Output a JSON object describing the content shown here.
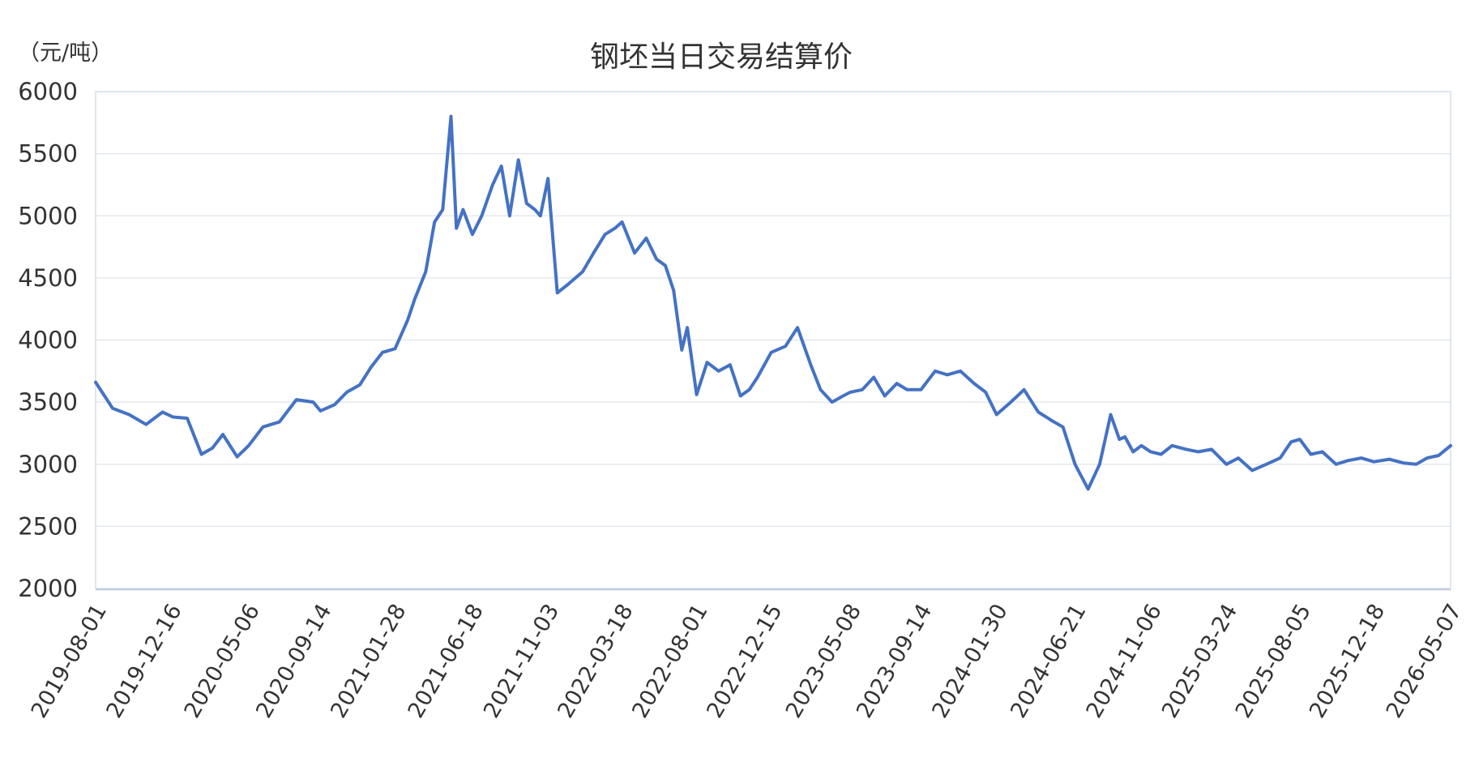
{
  "chart_data": {
    "type": "line",
    "title": "钢坯当日交易结算价",
    "ylabel": "（元/吨）",
    "xlabel": "",
    "ylim": [
      2000,
      6000
    ],
    "yticks": [
      2000,
      2500,
      3000,
      3500,
      4000,
      4500,
      5000,
      5500,
      6000
    ],
    "xticks": [
      "2019-08-01",
      "2019-12-16",
      "2020-05-06",
      "2020-09-14",
      "2021-01-28",
      "2021-06-18",
      "2021-11-03",
      "2022-03-18",
      "2022-08-01",
      "2022-12-15",
      "2023-05-08",
      "2023-09-14",
      "2024-01-30",
      "2024-06-21",
      "2024-11-06",
      "2025-03-24",
      "2025-08-05",
      "2025-12-18",
      "2026-05-07"
    ],
    "grid": true,
    "legend": "none",
    "line_color": "#4472c4",
    "series": [
      {
        "x": [
          "2019-08-01",
          "2019-09-01",
          "2019-10-01",
          "2019-11-01",
          "2019-12-01",
          "2019-12-20",
          "2020-01-15",
          "2020-02-10",
          "2020-03-01",
          "2020-03-20",
          "2020-04-15",
          "2020-05-06",
          "2020-06-01",
          "2020-07-01",
          "2020-08-01",
          "2020-09-01",
          "2020-09-14",
          "2020-10-10",
          "2020-11-01",
          "2020-11-25",
          "2020-12-15",
          "2021-01-05",
          "2021-01-28",
          "2021-02-20",
          "2021-03-05",
          "2021-03-25",
          "2021-04-10",
          "2021-04-25",
          "2021-05-10",
          "2021-05-20",
          "2021-06-01",
          "2021-06-18",
          "2021-07-05",
          "2021-07-25",
          "2021-08-10",
          "2021-08-25",
          "2021-09-10",
          "2021-09-25",
          "2021-10-10",
          "2021-10-20",
          "2021-11-03",
          "2021-11-20",
          "2021-12-10",
          "2022-01-05",
          "2022-01-25",
          "2022-02-15",
          "2022-03-05",
          "2022-03-18",
          "2022-04-10",
          "2022-05-01",
          "2022-05-20",
          "2022-06-05",
          "2022-06-20",
          "2022-07-05",
          "2022-07-15",
          "2022-08-01",
          "2022-08-20",
          "2022-09-10",
          "2022-10-01",
          "2022-10-20",
          "2022-11-05",
          "2022-11-20",
          "2022-12-15",
          "2023-01-10",
          "2023-02-01",
          "2023-02-25",
          "2023-03-15",
          "2023-04-05",
          "2023-04-25",
          "2023-05-08",
          "2023-05-30",
          "2023-06-20",
          "2023-07-10",
          "2023-08-01",
          "2023-08-20",
          "2023-09-14",
          "2023-10-10",
          "2023-11-01",
          "2023-11-25",
          "2023-12-20",
          "2024-01-10",
          "2024-01-30",
          "2024-02-25",
          "2024-03-20",
          "2024-04-15",
          "2024-05-10",
          "2024-05-30",
          "2024-06-21",
          "2024-07-15",
          "2024-08-05",
          "2024-08-25",
          "2024-09-10",
          "2024-09-20",
          "2024-10-05",
          "2024-10-20",
          "2024-11-06",
          "2024-11-25",
          "2024-12-15",
          "2025-01-10",
          "2025-02-01",
          "2025-02-25",
          "2025-03-24",
          "2025-04-15",
          "2025-05-10",
          "2025-06-05",
          "2025-06-30",
          "2025-07-20",
          "2025-08-05",
          "2025-08-25",
          "2025-09-15",
          "2025-10-10",
          "2025-11-01",
          "2025-11-25",
          "2025-12-18",
          "2026-01-15",
          "2026-02-10",
          "2026-03-05",
          "2026-03-25",
          "2026-04-15",
          "2026-05-07"
        ],
        "values": [
          3660,
          3450,
          3400,
          3320,
          3420,
          3380,
          3370,
          3080,
          3130,
          3240,
          3060,
          3150,
          3300,
          3340,
          3520,
          3500,
          3430,
          3480,
          3580,
          3640,
          3780,
          3900,
          3930,
          4160,
          4330,
          4550,
          4950,
          5050,
          5800,
          4900,
          5050,
          4850,
          5000,
          5250,
          5400,
          5000,
          5450,
          5100,
          5050,
          5000,
          5300,
          4380,
          4450,
          4550,
          4700,
          4850,
          4900,
          4950,
          4700,
          4820,
          4650,
          4600,
          4400,
          3920,
          4100,
          3560,
          3820,
          3750,
          3800,
          3550,
          3600,
          3700,
          3900,
          3950,
          4100,
          3800,
          3600,
          3500,
          3550,
          3580,
          3600,
          3700,
          3550,
          3650,
          3600,
          3600,
          3750,
          3720,
          3750,
          3650,
          3580,
          3400,
          3500,
          3600,
          3420,
          3350,
          3300,
          3000,
          2800,
          3000,
          3400,
          3200,
          3220,
          3100,
          3150,
          3100,
          3080,
          3150,
          3120,
          3100,
          3120,
          3000,
          3050,
          2950,
          3000,
          3050,
          3180,
          3200,
          3080,
          3100,
          3000,
          3030,
          3050,
          3020,
          3040,
          3010,
          3000,
          3050,
          3070,
          3150
        ]
      }
    ]
  }
}
